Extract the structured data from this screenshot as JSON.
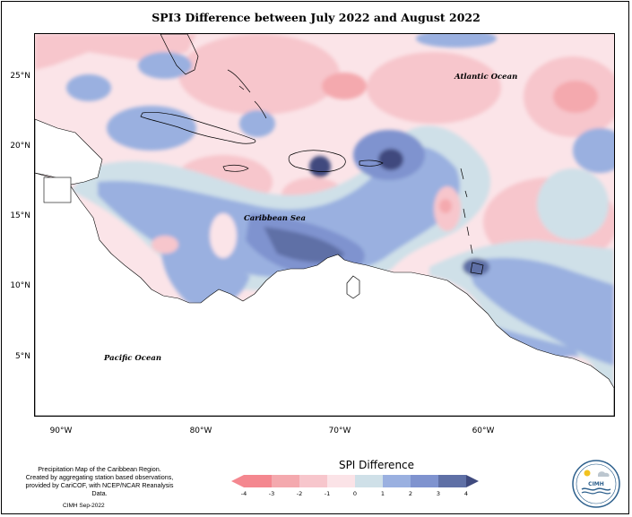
{
  "title": "SPI3 Difference between July 2022 and August 2022",
  "map": {
    "lat_labels": [
      "25°N",
      "20°N",
      "15°N",
      "10°N",
      "5°N"
    ],
    "lon_labels": [
      "90°W",
      "80°W",
      "70°W",
      "60°W"
    ],
    "ocean_labels": {
      "atlantic": "Atlantic Ocean",
      "caribbean": "Caribbean Sea",
      "pacific": "Pacific Ocean"
    },
    "extent": {
      "lon_min": -92,
      "lon_max": -51,
      "lat_min": 0.5,
      "lat_max": 27.8
    }
  },
  "legend": {
    "title": "SPI Difference",
    "ticks": [
      "-4",
      "-3",
      "-2",
      "-1",
      "0",
      "1",
      "2",
      "3",
      "4"
    ],
    "colors": [
      "#f4878f",
      "#f4a9ae",
      "#f7c6cc",
      "#fbe3e7",
      "#cfe0e8",
      "#9ab0e0",
      "#7f93cf",
      "#5f70a6",
      "#3f4a7e"
    ]
  },
  "footer": {
    "line1": "Precipitation Map of the Caribbean Region.",
    "line2": "Created by aggregating station based observations,",
    "line3": "provided by CariCOF, with NCEP/NCAR Reanalysis Data.",
    "credit": "CIMH Sep-2022"
  },
  "logo": {
    "text": "CIMH"
  }
}
